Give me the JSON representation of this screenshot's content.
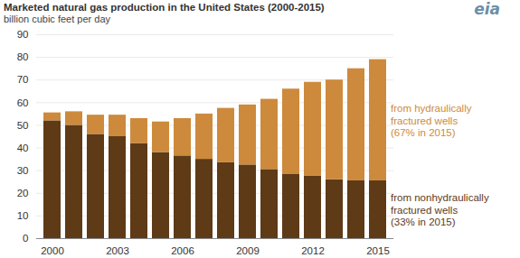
{
  "chart_data": {
    "type": "bar",
    "stacked": true,
    "title": "Marketed natural gas production in the United States (2000-2015)",
    "subtitle": "billion cubic feet per day",
    "source": "eia",
    "categories": [
      "2000",
      null,
      null,
      "2003",
      null,
      null,
      "2006",
      null,
      null,
      "2009",
      null,
      null,
      "2012",
      null,
      null,
      "2015"
    ],
    "series": [
      {
        "name": "from nonhydraulically fractured wells",
        "note": "(33% in 2015)",
        "color": "#5e3a17",
        "values": [
          52,
          50,
          46,
          45,
          42,
          38,
          36.5,
          35,
          33.5,
          32.5,
          30.5,
          28.5,
          27.5,
          26,
          25.5,
          25.5
        ]
      },
      {
        "name": "from hydraulically fractured wells",
        "note": "(67% in 2015)",
        "color": "#cd8a3c",
        "values": [
          3.5,
          6,
          8.5,
          9.5,
          11,
          13.5,
          16.5,
          20,
          24,
          26.5,
          31,
          37.5,
          41.5,
          44,
          49.5,
          53.5
        ]
      }
    ],
    "ylim": [
      0,
      90
    ],
    "yticks": [
      0,
      10,
      20,
      30,
      40,
      50,
      60,
      70,
      80,
      90
    ],
    "grid": true
  }
}
